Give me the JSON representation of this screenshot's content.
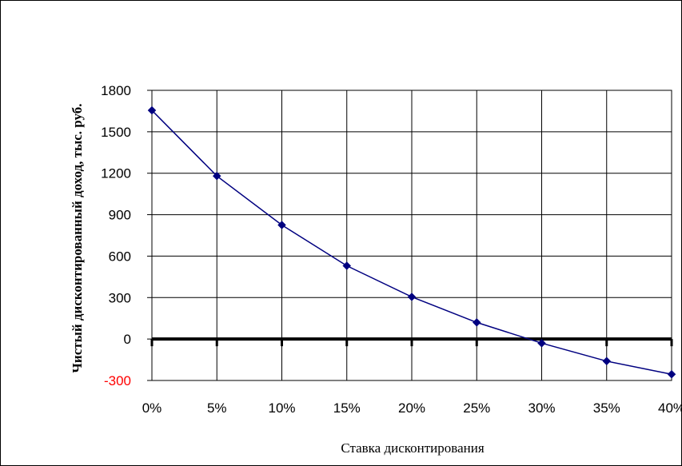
{
  "chart_data": {
    "type": "line",
    "title": "",
    "xlabel": "Ставка дисконтирования",
    "ylabel": "Чистый дисконтированный доход, тыс. руб.",
    "categories": [
      "0%",
      "5%",
      "10%",
      "15%",
      "20%",
      "25%",
      "30%",
      "35%",
      "40%"
    ],
    "series": [
      {
        "values": [
          1655,
          1180,
          825,
          530,
          305,
          120,
          -30,
          -160,
          -255
        ]
      }
    ],
    "yticks": [
      "1800",
      "1500",
      "1200",
      "900",
      "600",
      "300",
      "0",
      "-300"
    ],
    "ylim": [
      -300,
      1800
    ],
    "grid": true,
    "legend": "none",
    "colors": {
      "series": "#000080",
      "marker": "#000080",
      "grid": "#000000",
      "zero_line": "#000000",
      "negative_tick": "#ff0000",
      "tick_text": "#000000"
    }
  }
}
